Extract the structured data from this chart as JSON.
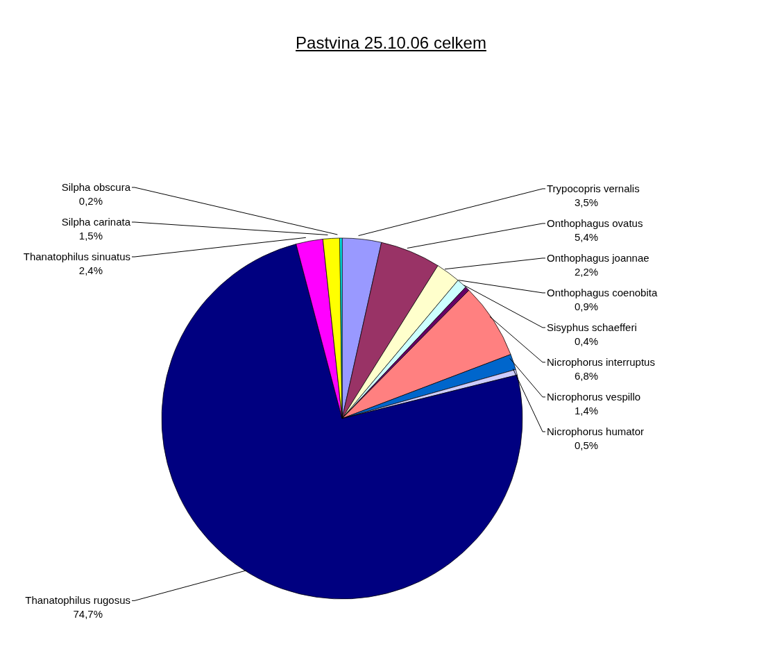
{
  "chart_data": {
    "type": "pie",
    "title": "Pastvina 25.10.06 celkem",
    "categories": [
      "Trypocopris vernalis",
      "Onthophagus ovatus",
      "Onthophagus joannae",
      "Onthophagus coenobita",
      "Sisyphus schaefferi",
      "Nicrophorus interruptus",
      "Nicrophorus vespillo",
      "Nicrophorus humator",
      "Thanatophilus rugosus",
      "Thanatophilus sinuatus",
      "Silpha carinata",
      "Silpha obscura"
    ],
    "values": [
      3.5,
      5.4,
      2.2,
      0.9,
      0.4,
      6.8,
      1.4,
      0.5,
      74.7,
      2.4,
      1.5,
      0.2
    ],
    "value_labels": [
      "3,5%",
      "5,4%",
      "2,2%",
      "0,9%",
      "0,4%",
      "6,8%",
      "1,4%",
      "0,5%",
      "74,7%",
      "2,4%",
      "1,5%",
      "0,2%"
    ],
    "colors": [
      "#9999ff",
      "#993366",
      "#ffffcc",
      "#ccffff",
      "#660066",
      "#ff8080",
      "#0066cc",
      "#ccccff",
      "#000080",
      "#ff00ff",
      "#ffff00",
      "#00ffff"
    ],
    "legend": false
  }
}
